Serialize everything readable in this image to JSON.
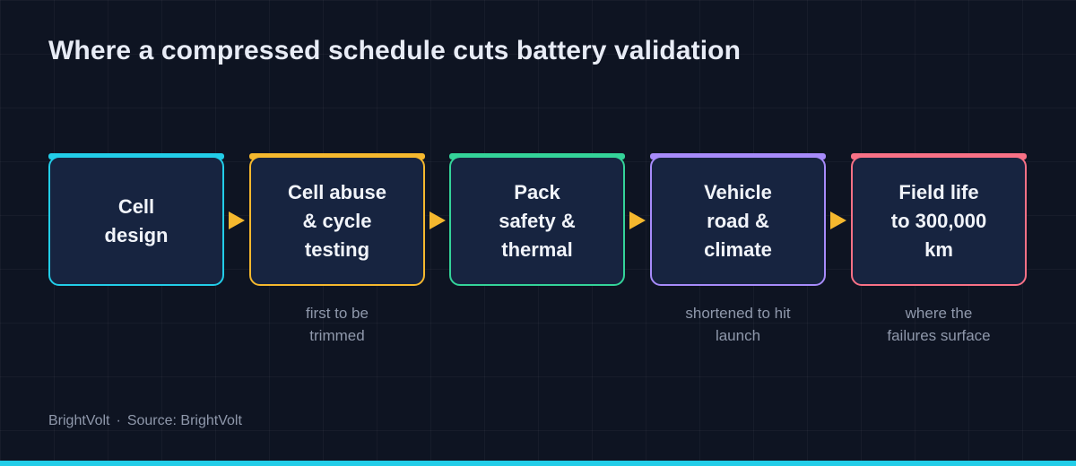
{
  "title": "Where a compressed schedule cuts battery validation",
  "stages": [
    {
      "label": "Cell\ndesign",
      "color": "#22cde8",
      "note": ""
    },
    {
      "label": "Cell abuse\n& cycle\ntesting",
      "color": "#f5b82e",
      "note": "first to be\ntrimmed"
    },
    {
      "label": "Pack\nsafety &\nthermal",
      "color": "#34d399",
      "note": ""
    },
    {
      "label": "Vehicle\nroad &\nclimate",
      "color": "#a78bfa",
      "note": "shortened to hit\nlaunch"
    },
    {
      "label": "Field life\nto 300,000\nkm",
      "color": "#f87186",
      "note": "where the\nfailures surface"
    }
  ],
  "arrow_color": "#f5b82e",
  "footer": {
    "brand": "BrightVolt",
    "separator": "·",
    "source": "Source: BrightVolt"
  },
  "accent_color": "#22cde8"
}
